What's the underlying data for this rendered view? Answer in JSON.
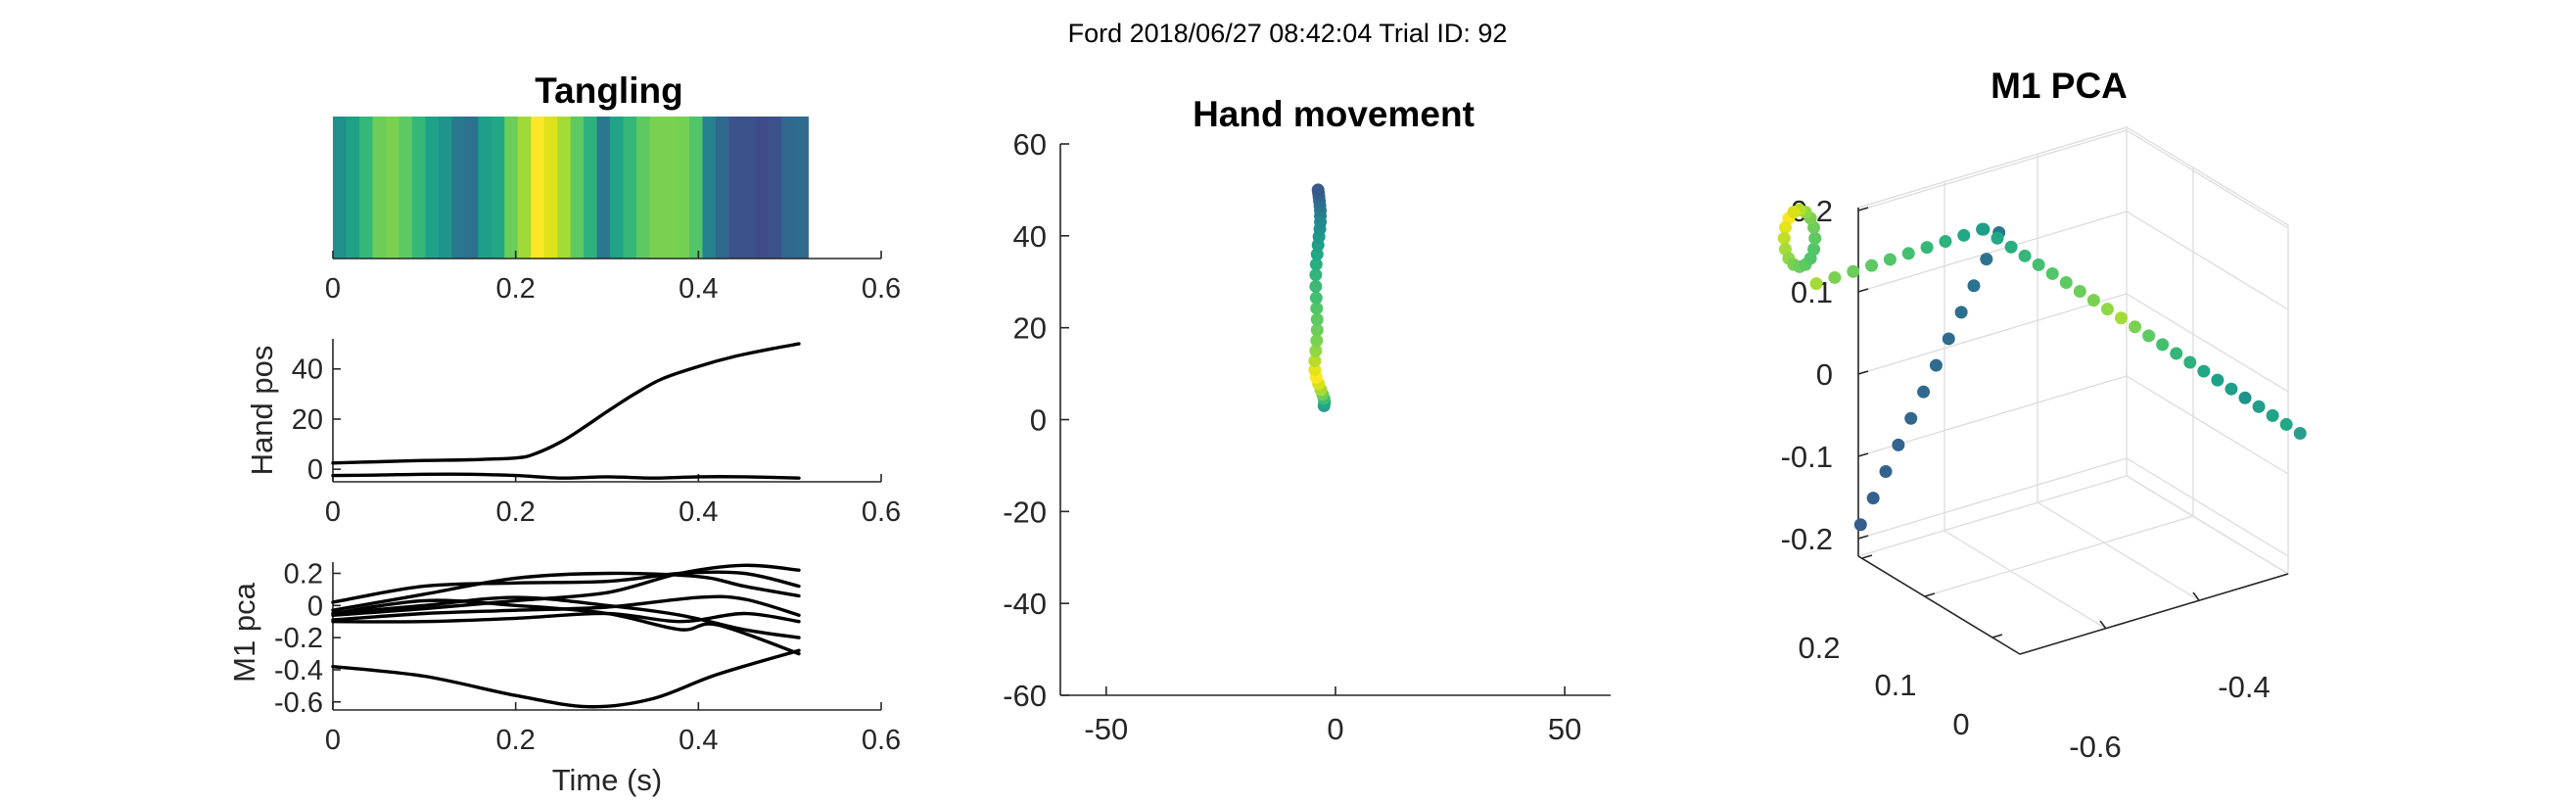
{
  "figure": {
    "suptitle": "Ford 2018/06/27 08:42:04 Trial ID: 92"
  },
  "chart_data": [
    {
      "type": "heatmap",
      "title": "Tangling",
      "xlabel": "",
      "ylabel": "",
      "xlim": [
        0,
        0.6
      ],
      "xticks": [
        "0",
        "0.2",
        "0.4",
        "0.6"
      ],
      "x_end": 0.52,
      "colors": [
        "#21908d",
        "#1fa187",
        "#35b779",
        "#6ccd5a",
        "#7ad151",
        "#5ec962",
        "#35b779",
        "#1fa187",
        "#20948c",
        "#29788e",
        "#2c728e",
        "#1f9e89",
        "#22a884",
        "#6ccd5a",
        "#a0da39",
        "#fde725",
        "#dde318",
        "#a5db36",
        "#5ec962",
        "#2db27d",
        "#2a788e",
        "#20a386",
        "#35b779",
        "#5ec962",
        "#7ad151",
        "#7ad151",
        "#74d055",
        "#52c569",
        "#26828e",
        "#31688e",
        "#3b528b",
        "#3b528b",
        "#3e4c8a",
        "#3b528b",
        "#31688e",
        "#2f6b8e"
      ]
    },
    {
      "type": "line",
      "title": "",
      "xlabel": "",
      "ylabel": "Hand pos",
      "xlim": [
        0,
        0.6
      ],
      "ylim": [
        -5,
        52
      ],
      "xticks": [
        "0",
        "0.2",
        "0.4",
        "0.6"
      ],
      "yticks": [
        "0",
        "20",
        "40"
      ],
      "series": [
        {
          "x": [
            0,
            0.05,
            0.1,
            0.15,
            0.2,
            0.22,
            0.25,
            0.28,
            0.3,
            0.33,
            0.36,
            0.4,
            0.44,
            0.48,
            0.51
          ],
          "y": [
            2.5,
            3,
            3.5,
            3.8,
            4.5,
            6,
            11,
            18,
            23,
            30,
            36,
            41,
            45,
            48,
            50
          ]
        },
        {
          "x": [
            0,
            0.05,
            0.1,
            0.15,
            0.2,
            0.25,
            0.3,
            0.35,
            0.4,
            0.45,
            0.51
          ],
          "y": [
            -2.5,
            -2.3,
            -2,
            -2,
            -2.5,
            -3.5,
            -3,
            -3.5,
            -3,
            -3,
            -3.5
          ]
        }
      ]
    },
    {
      "type": "line",
      "title": "",
      "xlabel": "Time (s)",
      "ylabel": "M1 pca",
      "xlim": [
        0,
        0.6
      ],
      "ylim": [
        -0.65,
        0.27
      ],
      "xticks": [
        "0",
        "0.2",
        "0.4",
        "0.6"
      ],
      "yticks": [
        "0.2",
        "0",
        "-0.2",
        "-0.4",
        "-0.6"
      ],
      "series": [
        {
          "x": [
            0,
            0.1,
            0.2,
            0.28,
            0.35,
            0.42,
            0.51
          ],
          "y": [
            -0.38,
            -0.44,
            -0.56,
            -0.63,
            -0.58,
            -0.43,
            -0.28
          ]
        },
        {
          "x": [
            0,
            0.1,
            0.2,
            0.3,
            0.38,
            0.45,
            0.51
          ],
          "y": [
            0.02,
            0.12,
            0.14,
            0.15,
            0.2,
            0.2,
            0.12
          ]
        },
        {
          "x": [
            0,
            0.1,
            0.2,
            0.3,
            0.4,
            0.45,
            0.51
          ],
          "y": [
            -0.03,
            0.07,
            0.17,
            0.2,
            0.18,
            0.12,
            0.06
          ]
        },
        {
          "x": [
            0,
            0.1,
            0.2,
            0.3,
            0.38,
            0.45,
            0.51
          ],
          "y": [
            -0.05,
            0.0,
            0.05,
            0.0,
            -0.06,
            -0.15,
            -0.2
          ]
        },
        {
          "x": [
            0,
            0.1,
            0.2,
            0.3,
            0.38,
            0.45,
            0.51
          ],
          "y": [
            -0.06,
            -0.02,
            0.03,
            0.08,
            0.2,
            0.25,
            0.22
          ]
        },
        {
          "x": [
            0,
            0.1,
            0.2,
            0.3,
            0.4,
            0.45,
            0.51
          ],
          "y": [
            -0.09,
            -0.05,
            -0.03,
            -0.01,
            0.05,
            0.04,
            -0.06
          ]
        },
        {
          "x": [
            0,
            0.1,
            0.2,
            0.3,
            0.38,
            0.45,
            0.51
          ],
          "y": [
            -0.1,
            -0.1,
            -0.08,
            -0.05,
            -0.1,
            -0.05,
            -0.1
          ]
        },
        {
          "x": [
            0,
            0.1,
            0.2,
            0.3,
            0.38,
            0.42,
            0.51
          ],
          "y": [
            -0.05,
            0.03,
            0.0,
            -0.05,
            -0.15,
            -0.12,
            -0.3
          ]
        }
      ]
    },
    {
      "type": "scatter",
      "title": "Hand movement",
      "xlabel": "",
      "ylabel": "",
      "xlim": [
        -60,
        60
      ],
      "ylim": [
        -60,
        60
      ],
      "xticks": [
        "-50",
        "0",
        "50"
      ],
      "yticks": [
        "60",
        "40",
        "20",
        "0",
        "-20",
        "-40",
        "-60"
      ],
      "points": [
        {
          "x": -2.5,
          "y": 3,
          "c": "#2a9d8f"
        },
        {
          "x": -2.4,
          "y": 3.8,
          "c": "#23a884"
        },
        {
          "x": -2.5,
          "y": 4.6,
          "c": "#3cbc74"
        },
        {
          "x": -2.8,
          "y": 5.5,
          "c": "#6ccd5a"
        },
        {
          "x": -3.2,
          "y": 6.5,
          "c": "#a2da37"
        },
        {
          "x": -3.7,
          "y": 7.8,
          "c": "#d8e219"
        },
        {
          "x": -4.2,
          "y": 9.2,
          "c": "#fde725"
        },
        {
          "x": -4.5,
          "y": 10.8,
          "c": "#e5e419"
        },
        {
          "x": -4.5,
          "y": 12.8,
          "c": "#b8de29"
        },
        {
          "x": -4.3,
          "y": 15,
          "c": "#8fd744"
        },
        {
          "x": -4.1,
          "y": 17.2,
          "c": "#7ad151"
        },
        {
          "x": -4.0,
          "y": 19.5,
          "c": "#6ccd5a"
        },
        {
          "x": -4.0,
          "y": 21.8,
          "c": "#5ec962"
        },
        {
          "x": -4.1,
          "y": 24.2,
          "c": "#52c569"
        },
        {
          "x": -4.2,
          "y": 26.5,
          "c": "#44bf70"
        },
        {
          "x": -4.3,
          "y": 29,
          "c": "#3aba76"
        },
        {
          "x": -4.3,
          "y": 31.5,
          "c": "#31b57b"
        },
        {
          "x": -4.2,
          "y": 33.8,
          "c": "#29af7f"
        },
        {
          "x": -4.0,
          "y": 36,
          "c": "#22a884"
        },
        {
          "x": -3.8,
          "y": 38,
          "c": "#1fa187"
        },
        {
          "x": -3.6,
          "y": 39.8,
          "c": "#1f9a8a"
        },
        {
          "x": -3.4,
          "y": 41.5,
          "c": "#20928c"
        },
        {
          "x": -3.3,
          "y": 43,
          "c": "#228b8d"
        },
        {
          "x": -3.3,
          "y": 44.3,
          "c": "#25848e"
        },
        {
          "x": -3.3,
          "y": 45.5,
          "c": "#287c8e"
        },
        {
          "x": -3.4,
          "y": 46.6,
          "c": "#2b758e"
        },
        {
          "x": -3.5,
          "y": 47.6,
          "c": "#2e6e8e"
        },
        {
          "x": -3.6,
          "y": 48.5,
          "c": "#31688e"
        },
        {
          "x": -3.7,
          "y": 49.3,
          "c": "#35608d"
        },
        {
          "x": -3.8,
          "y": 50,
          "c": "#38598c"
        }
      ]
    },
    {
      "type": "scatter",
      "title": "M1 PCA",
      "xlabel": "",
      "ylabel": "",
      "zlim": [
        -0.25,
        0.22
      ],
      "zticks": [
        "0.2",
        "0.1",
        "0",
        "-0.1",
        "-0.2"
      ],
      "left_ticks": [
        "0.2",
        "0.1",
        "0"
      ],
      "right_ticks": [
        "-0.4",
        "-0.6"
      ],
      "branch_a": {
        "from": [
          0.4055,
          0.172
        ],
        "to": [
          0.1945,
          -0.183
        ],
        "n": 12,
        "c_from": "#2a768e",
        "c_to": "#355e8d"
      },
      "branch_b": {
        "from": [
          0.382,
          0.176
        ],
        "to": [
          0.8645,
          -0.072
        ],
        "n": 24,
        "c_from": "#1f9e89",
        "c_to": "#1fa187"
      },
      "loop": {
        "cx": 0.1015,
        "cy": 0.165,
        "rx": 0.0235,
        "ry": 0.0345,
        "n": 16,
        "colors": [
          "#fde725",
          "#e5e419",
          "#c2df23",
          "#a5db36",
          "#8fd744",
          "#7ad151",
          "#6ccd5a",
          "#5ec962",
          "#52c569",
          "#52c569",
          "#5ec962",
          "#6ccd5a",
          "#7ad151",
          "#8fd744",
          "#b5de2b",
          "#d8e219"
        ]
      },
      "tail": {
        "from": [
          0.127,
          0.11
        ],
        "to": [
          0.38,
          0.176
        ],
        "n": 10,
        "colors": [
          "#a5db36",
          "#7ad151",
          "#6ccd5a",
          "#5ec962",
          "#52c569",
          "#44bf70",
          "#35b779",
          "#2db27d",
          "#22a884",
          "#1f9e89"
        ]
      },
      "b_colors": [
        "#20a386",
        "#22a884",
        "#29af7f",
        "#35b779",
        "#44bf70",
        "#52c569",
        "#5ec962",
        "#6ccd5a",
        "#7ad151",
        "#8fd744",
        "#a5db36",
        "#7ad151",
        "#5ec962",
        "#44bf70",
        "#35b779",
        "#2db27d",
        "#22a884",
        "#1fa187",
        "#1f9e89",
        "#20928c",
        "#1f9e89",
        "#20a386",
        "#22a884",
        "#2a9d8f"
      ]
    }
  ]
}
